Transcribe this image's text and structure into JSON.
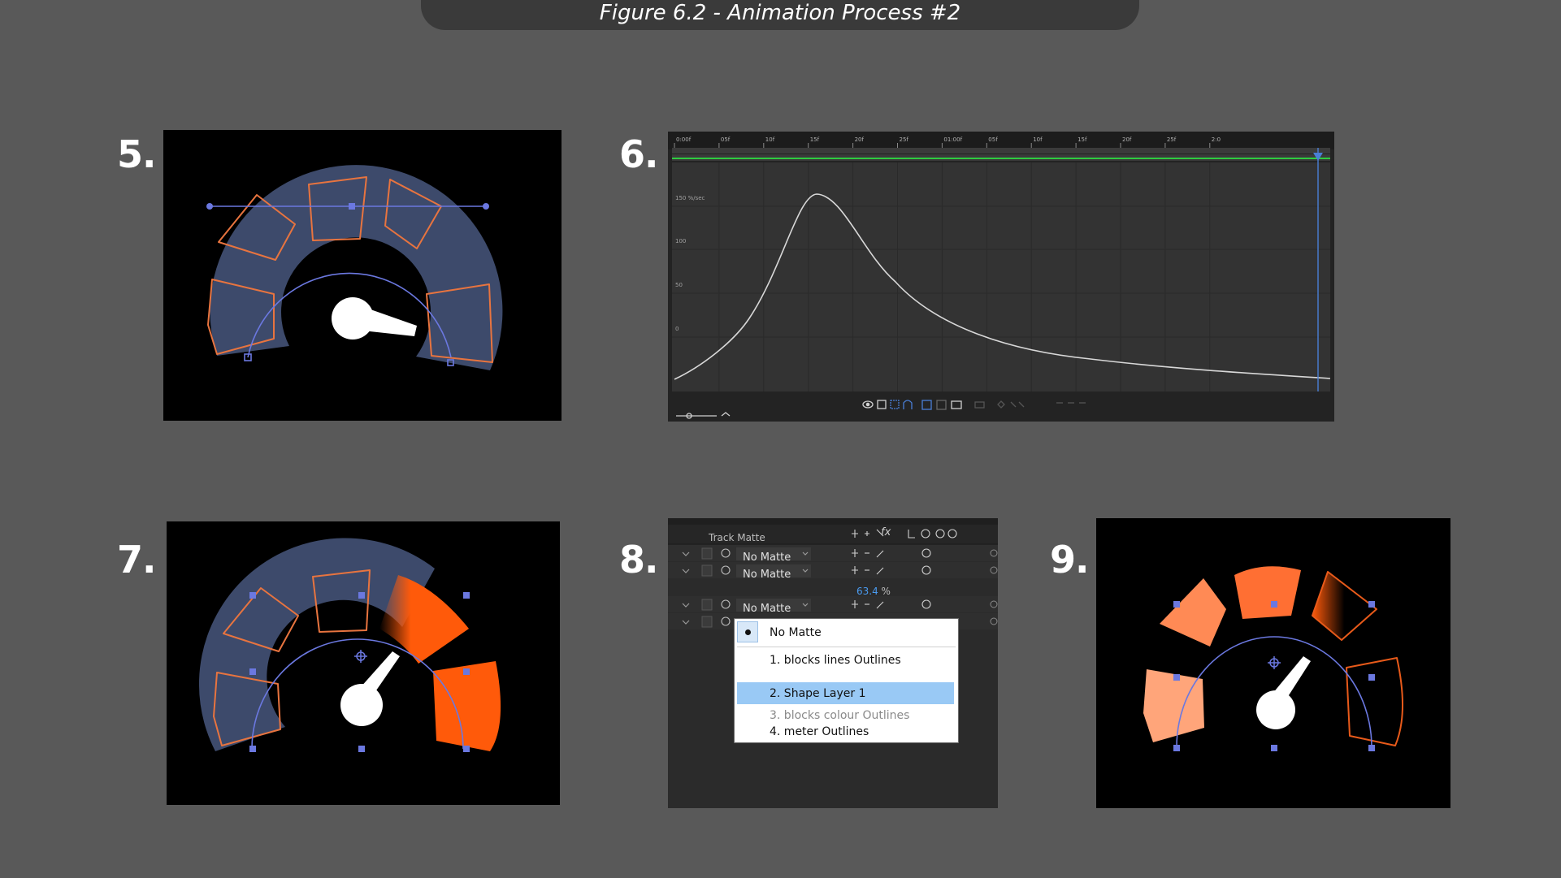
{
  "figure_title": "Figure 6.2 - Animation Process #2",
  "steps": [
    "5.",
    "6.",
    "7.",
    "8.",
    "9."
  ],
  "graph_editor": {
    "time_ticks": [
      "0:00f",
      "05f",
      "10f",
      "15f",
      "20f",
      "25f",
      "01:00f",
      "05f",
      "10f",
      "15f",
      "20f",
      "25f",
      "2:0"
    ],
    "y_labels": [
      "150 %/sec",
      "100",
      "50",
      "0"
    ]
  },
  "layers_panel": {
    "header_label": "Track Matte",
    "rows": [
      {
        "matte": "No Matte"
      },
      {
        "matte": "No Matte"
      },
      {
        "matte": "No Matte"
      }
    ],
    "percent_value": "63.4",
    "percent_unit": "%",
    "menu_items": [
      {
        "label": "No Matte",
        "state": "checked"
      },
      {
        "label": "1. blocks lines Outlines",
        "state": "normal"
      },
      {
        "label": "2. Shape Layer 1",
        "state": "selected"
      },
      {
        "label": "3. blocks colour Outlines",
        "state": "disabled"
      },
      {
        "label": "4. meter Outlines",
        "state": "normal"
      }
    ]
  },
  "colors": {
    "page_bg": "#595959",
    "title_bar": "#3a3a3a",
    "gauge_fill": "#3d4a6b",
    "outline_orange": "#e8743f",
    "accent_orange": "#ff5a0a",
    "path_blue": "#6b78e0",
    "menu_selected": "#99c9f5"
  }
}
